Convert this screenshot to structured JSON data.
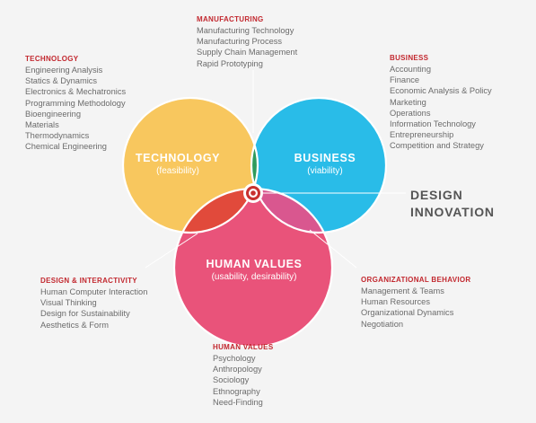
{
  "circles": {
    "technology": {
      "title": "TECHNOLOGY",
      "subtitle": "(feasibility)",
      "color": "#f8c75e"
    },
    "business": {
      "title": "BUSINESS",
      "subtitle": "(viability)",
      "color": "#29bce8"
    },
    "human_values": {
      "title": "HUMAN VALUES",
      "subtitle": "(usability, desirability)",
      "color": "#e9537a"
    }
  },
  "overlap_colors": {
    "technology_business": "#2f9b5c",
    "technology_human": "#e14a3b",
    "business_human": "#d9578f",
    "center": "#c8312f"
  },
  "center_label": {
    "line1": "DESIGN",
    "line2": "INNOVATION"
  },
  "categories": {
    "technology": {
      "heading": "TECHNOLOGY",
      "items": [
        "Engineering Analysis",
        "Statics & Dynamics",
        "Electronics & Mechatronics",
        "Programming Methodology",
        "Bioengineering",
        "Materials",
        "Thermodynamics",
        "Chemical Engineering"
      ]
    },
    "manufacturing": {
      "heading": "MANUFACTURING",
      "items": [
        "Manufacturing Technology",
        "Manufacturing Process",
        "Supply Chain Management",
        "Rapid Prototyping"
      ]
    },
    "business": {
      "heading": "BUSINESS",
      "items": [
        "Accounting",
        "Finance",
        "Economic Analysis & Policy",
        "Marketing",
        "Operations",
        "Information Technology",
        "Entrepreneurship",
        "Competition and Strategy"
      ]
    },
    "design_interactivity": {
      "heading": "DESIGN & INTERACTIVITY",
      "items": [
        "Human Computer Interaction",
        "Visual Thinking",
        "Design for Sustainability",
        "Aesthetics & Form"
      ]
    },
    "organizational_behavior": {
      "heading": "ORGANIZATIONAL BEHAVIOR",
      "items": [
        "Management & Teams",
        "Human Resources",
        "Organizational Dynamics",
        "Negotiation"
      ]
    },
    "human_values": {
      "heading": "HUMAN VALUES",
      "items": [
        "Psychology",
        "Anthropology",
        "Sociology",
        "Ethnography",
        "Need-Finding"
      ]
    }
  },
  "accent_color": "#c2282f"
}
